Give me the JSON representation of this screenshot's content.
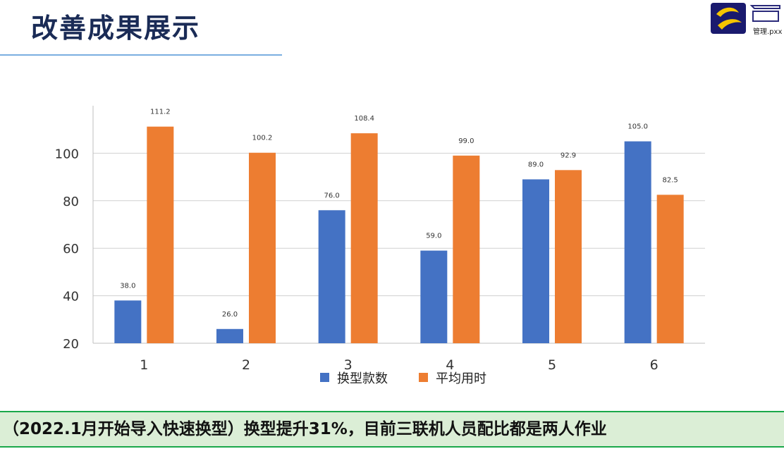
{
  "header": {
    "title": "改善成果展示",
    "logo_caption": "管理.pxx"
  },
  "chart_data": {
    "type": "bar",
    "categories": [
      "1",
      "2",
      "3",
      "4",
      "5",
      "6"
    ],
    "series": [
      {
        "name": "换型款数",
        "values": [
          38.0,
          26.0,
          76.0,
          59.0,
          89.0,
          105.0
        ],
        "labels": [
          "38.0",
          "26.0",
          "76.0",
          "59.0",
          "89.0",
          "105.0"
        ],
        "color": "#4472c4"
      },
      {
        "name": "平均用时",
        "values": [
          111.2,
          100.2,
          108.4,
          99.0,
          92.9,
          82.5
        ],
        "labels": [
          "111.2",
          "100.2",
          "108.4",
          "99.0",
          "92.9",
          "82.5"
        ],
        "color": "#ed7d31"
      }
    ],
    "yticks": [
      "20",
      "40",
      "60",
      "80",
      "100"
    ],
    "ylim": [
      20,
      120
    ],
    "grid": true,
    "legend_position": "bottom-center",
    "title": "",
    "xlabel": "",
    "ylabel": ""
  },
  "banner": {
    "text": "（2022.1月开始导入快速换型）换型提升31%，目前三联机人员配比都是两人作业",
    "background": "#dbeed6",
    "border_color": "#1aa84a"
  }
}
